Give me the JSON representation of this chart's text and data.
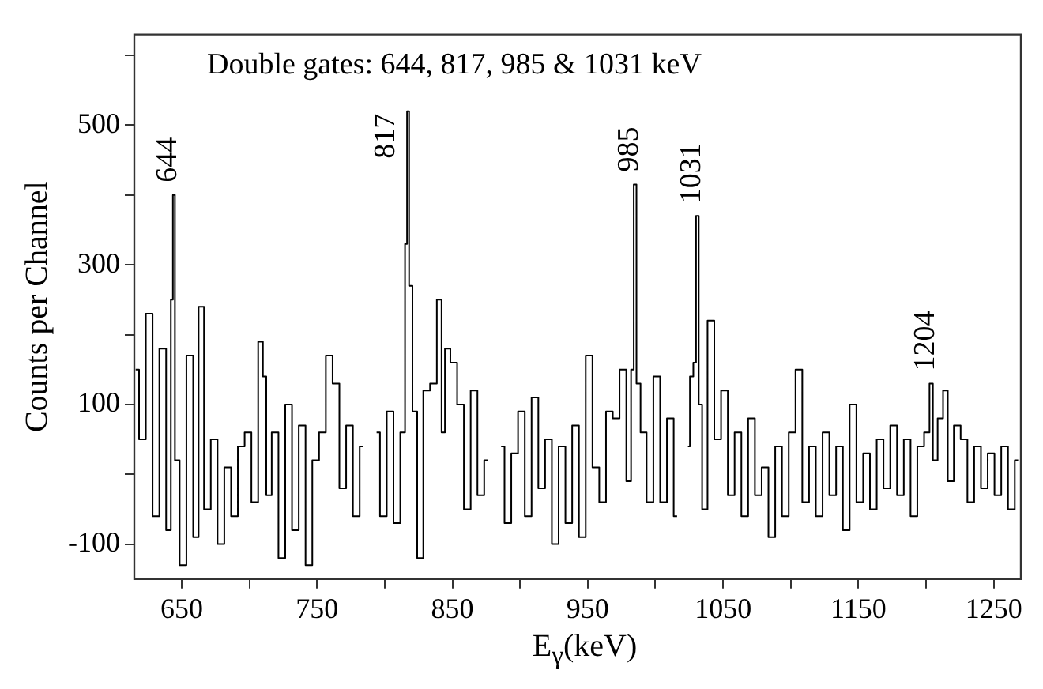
{
  "chart_data": {
    "type": "step",
    "title": "Double gates: 644, 817, 985 & 1031 keV",
    "xlabel": "E$_{γ}$(keV)",
    "ylabel": "Counts per Channel",
    "xlim": [
      615,
      1270
    ],
    "xticks": [
      650,
      {
        "value": 700,
        "label": null
      },
      750,
      {
        "value": 800,
        "label": null
      },
      850,
      {
        "value": 900,
        "label": null
      },
      950,
      {
        "value": 1000,
        "label": null
      },
      1050,
      {
        "value": 1100,
        "label": null
      },
      1150,
      {
        "value": 1200,
        "label": null
      },
      1250
    ],
    "ylim": [
      -150,
      630
    ],
    "yticks": [
      -100,
      {
        "value": 0,
        "label": null
      },
      100,
      {
        "value": 200,
        "label": null
      },
      300,
      {
        "value": 400,
        "label": null
      },
      500,
      {
        "value": 600,
        "label": null
      }
    ],
    "grid": false,
    "legend": false,
    "marker": "none",
    "line_style": "solid",
    "annotations": [
      {
        "text": "644",
        "x": 644,
        "y": 400
      },
      {
        "text": "817",
        "x": 817,
        "y": 520
      },
      {
        "text": "985",
        "x": 985,
        "y": 415
      },
      {
        "text": "1031",
        "x": 1031,
        "y": 370
      },
      {
        "text": "1204",
        "x": 1204,
        "y": 130
      }
    ],
    "series": [
      {
        "color": "#000000",
        "x": [
          616,
          621,
          626,
          631,
          636,
          641,
          643,
          644,
          646,
          651,
          656,
          661,
          664,
          669,
          674,
          679,
          684,
          689,
          694,
          699,
          704,
          709,
          711,
          714,
          719,
          724,
          729,
          734,
          739,
          744,
          749,
          754,
          759,
          764,
          769,
          774,
          779,
          784,
          789,
          794,
          799,
          804,
          809,
          814,
          816,
          817,
          819,
          822,
          826,
          831,
          836,
          841,
          843,
          846,
          851,
          856,
          861,
          866,
          871,
          876,
          881,
          886,
          891,
          896,
          901,
          906,
          911,
          916,
          921,
          926,
          931,
          936,
          941,
          946,
          951,
          956,
          961,
          966,
          971,
          976,
          981,
          983,
          985,
          987,
          991,
          996,
          1001,
          1006,
          1011,
          1016,
          1021,
          1024,
          1027,
          1029,
          1031,
          1033,
          1036,
          1041,
          1046,
          1051,
          1056,
          1061,
          1066,
          1071,
          1076,
          1081,
          1086,
          1091,
          1096,
          1101,
          1106,
          1111,
          1116,
          1121,
          1126,
          1131,
          1136,
          1141,
          1146,
          1151,
          1156,
          1161,
          1166,
          1171,
          1176,
          1181,
          1186,
          1191,
          1196,
          1201,
          1204,
          1206,
          1211,
          1214,
          1218,
          1223,
          1228,
          1233,
          1238,
          1243,
          1248,
          1253,
          1258,
          1263,
          1268
        ],
        "values": [
          150,
          50,
          230,
          -60,
          180,
          -80,
          250,
          400,
          20,
          -130,
          170,
          -90,
          240,
          -50,
          50,
          -100,
          10,
          -60,
          40,
          60,
          -40,
          190,
          140,
          -30,
          60,
          -120,
          100,
          -80,
          70,
          -130,
          20,
          60,
          170,
          130,
          -20,
          70,
          -60,
          40,
          null,
          60,
          -60,
          90,
          -70,
          60,
          330,
          520,
          270,
          90,
          -120,
          120,
          130,
          250,
          60,
          180,
          160,
          100,
          -50,
          120,
          -30,
          20,
          null,
          40,
          -70,
          30,
          90,
          -60,
          110,
          -20,
          50,
          -100,
          40,
          -70,
          70,
          -90,
          170,
          10,
          -40,
          90,
          80,
          150,
          -10,
          150,
          415,
          130,
          60,
          -40,
          140,
          -40,
          80,
          -60,
          null,
          40,
          140,
          160,
          370,
          100,
          -50,
          220,
          50,
          120,
          -30,
          60,
          -60,
          80,
          -30,
          10,
          -90,
          40,
          -60,
          60,
          150,
          -40,
          40,
          -60,
          60,
          -30,
          40,
          -80,
          100,
          -40,
          30,
          -50,
          50,
          -20,
          70,
          -30,
          50,
          -60,
          40,
          60,
          130,
          20,
          80,
          120,
          -10,
          70,
          50,
          -40,
          40,
          -20,
          30,
          -30,
          40,
          -50,
          20
        ]
      }
    ]
  }
}
